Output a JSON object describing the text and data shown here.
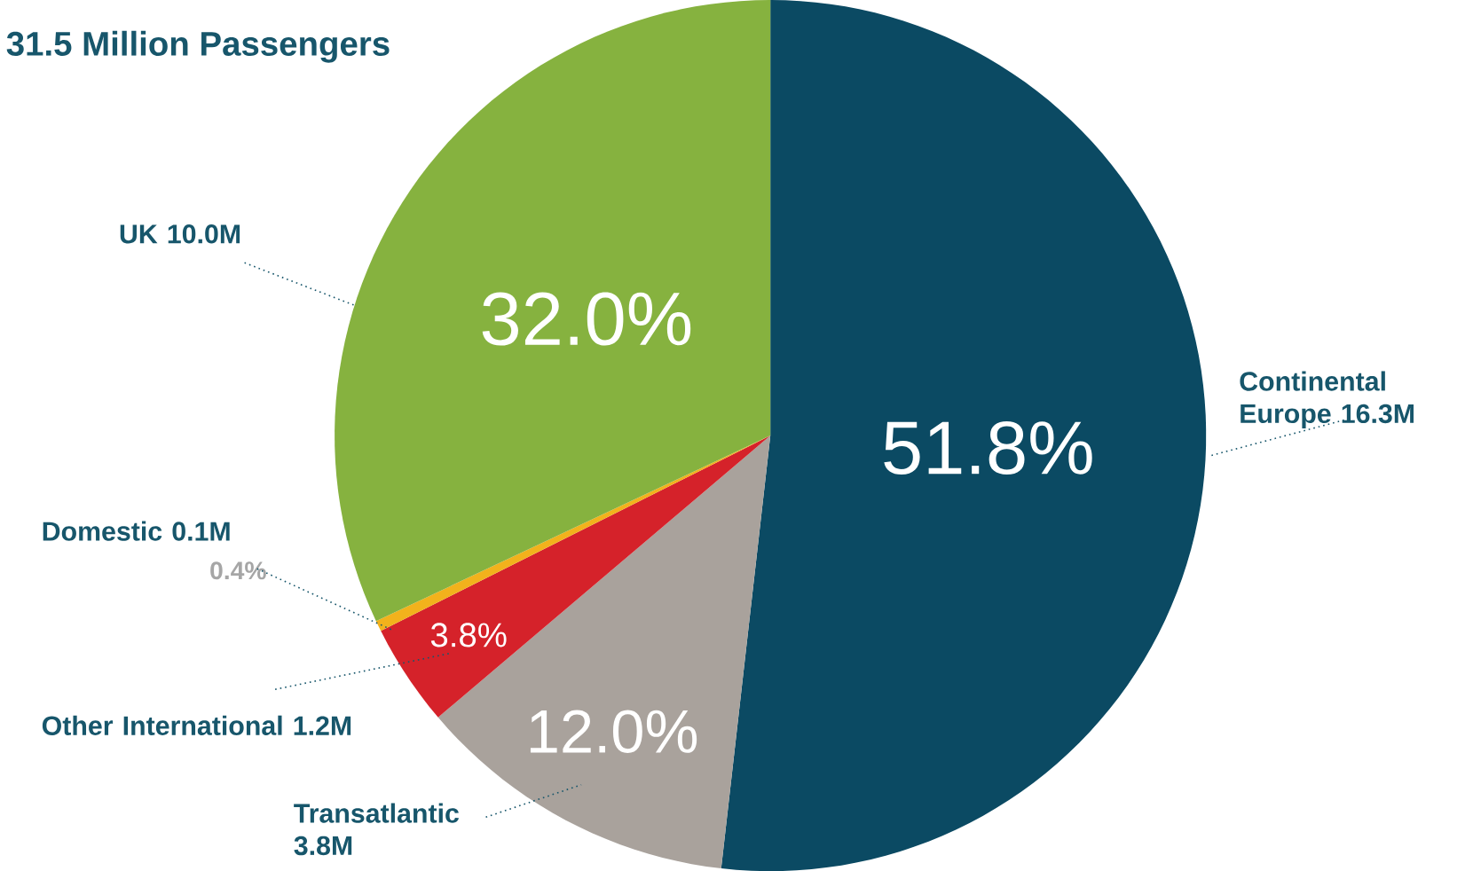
{
  "chart_data": {
    "type": "pie",
    "title": "31.5 Million Passengers",
    "categories": [
      "Continental Europe 16.3M",
      "Transatlantic 3.8M",
      "Other International 1.2M",
      "Domestic 0.1M",
      "UK 10.0M"
    ],
    "values": [
      51.8,
      12.0,
      3.8,
      0.4,
      32.0
    ],
    "value_labels": [
      "51.8%",
      "12.0%",
      "3.8%",
      "0.4%",
      "32.0%"
    ],
    "colors": [
      "#0b4a63",
      "#a9a29c",
      "#d5222a",
      "#f2b21c",
      "#86b23f"
    ]
  }
}
